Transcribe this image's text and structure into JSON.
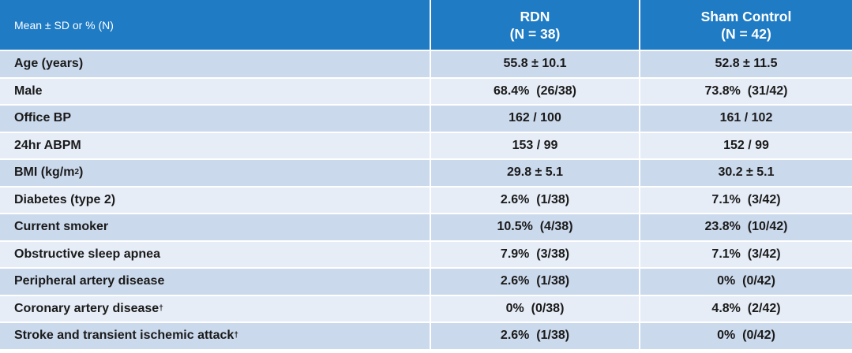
{
  "header": {
    "label_col": "Mean ± SD or % (N)",
    "rdn_name": "RDN",
    "rdn_n": "(N = 38)",
    "sham_name": "Sham Control",
    "sham_n": "(N = 42)"
  },
  "rows": [
    {
      "label": "Age (years)",
      "sup": "",
      "rdn": "55.8 ± 10.1",
      "sham": "52.8 ± 11.5"
    },
    {
      "label": "Male",
      "sup": "",
      "rdn": "68.4%  (26/38)",
      "sham": "73.8%  (31/42)"
    },
    {
      "label": "Office BP",
      "sup": "",
      "rdn": "162 / 100",
      "sham": "161 / 102"
    },
    {
      "label": "24hr ABPM",
      "sup": "",
      "rdn": "153 / 99",
      "sham": "152 / 99"
    },
    {
      "label": "BMI (kg/m",
      "sup": "2",
      "label_tail": ")",
      "rdn": "29.8 ± 5.1",
      "sham": "30.2 ± 5.1"
    },
    {
      "label": "Diabetes (type 2)",
      "sup": "",
      "rdn": "2.6%  (1/38)",
      "sham": "7.1%  (3/42)"
    },
    {
      "label": "Current smoker",
      "sup": "",
      "rdn": "10.5%  (4/38)",
      "sham": "23.8%  (10/42)"
    },
    {
      "label": "Obstructive sleep apnea",
      "sup": "",
      "rdn": "7.9%  (3/38)",
      "sham": "7.1%  (3/42)"
    },
    {
      "label": "Peripheral artery disease",
      "sup": "",
      "rdn": "2.6%  (1/38)",
      "sham": "0%  (0/42)"
    },
    {
      "label": "Coronary artery disease",
      "sup": "†",
      "rdn": "0%  (0/38)",
      "sham": "4.8%  (2/42)"
    },
    {
      "label": "Stroke and transient ischemic attack",
      "sup": "†",
      "rdn": "2.6%  (1/38)",
      "sham": "0%  (0/42)"
    }
  ],
  "colors": {
    "header_bg": "#1E7BC4",
    "row_dark": "#CBD9EC",
    "row_light": "#E6EDF7"
  }
}
